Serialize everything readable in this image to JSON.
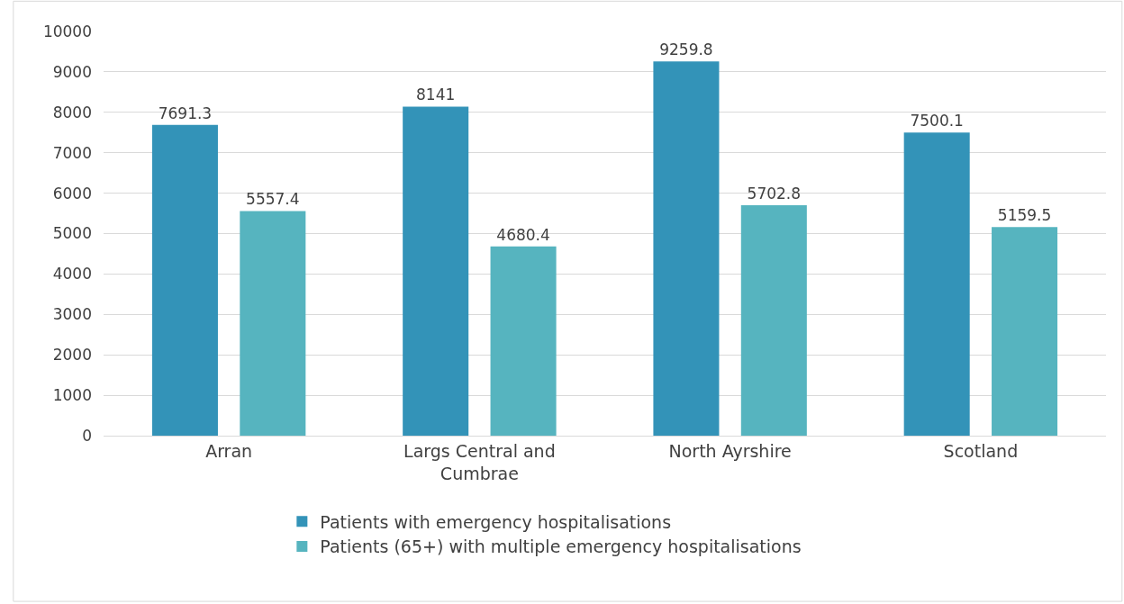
{
  "chart_data": {
    "type": "bar",
    "categories": [
      "Arran",
      "Largs Central and Cumbrae",
      "North Ayrshire",
      "Scotland"
    ],
    "series": [
      {
        "name": "Patients with emergency hospitalisations",
        "color": "#3393b8",
        "values": [
          7691.3,
          8141,
          9259.8,
          7500.1
        ]
      },
      {
        "name": "Patients (65+) with multiple emergency hospitalisations",
        "color": "#56b4bf",
        "values": [
          5557.4,
          4680.4,
          5702.8,
          5159.5
        ]
      }
    ],
    "ylim": [
      0,
      10000
    ],
    "yticks": [
      0,
      1000,
      2000,
      3000,
      4000,
      5000,
      6000,
      7000,
      8000,
      9000,
      10000
    ],
    "grid": "y",
    "legend": "bottom",
    "data_labels": true
  }
}
